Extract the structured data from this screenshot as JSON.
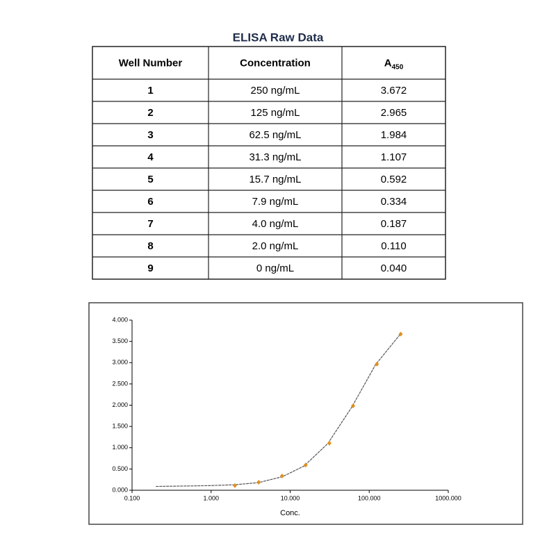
{
  "table": {
    "title": "ELISA Raw Data",
    "headers": [
      "Well Number",
      "Concentration",
      {
        "main": "A",
        "sub": "450"
      }
    ],
    "rows": [
      [
        "1",
        "250 ng/mL",
        "3.672"
      ],
      [
        "2",
        "125 ng/mL",
        "2.965"
      ],
      [
        "3",
        "62.5 ng/mL",
        "1.984"
      ],
      [
        "4",
        "31.3 ng/mL",
        "1.107"
      ],
      [
        "5",
        "15.7 ng/mL",
        "0.592"
      ],
      [
        "6",
        "7.9 ng/mL",
        "0.334"
      ],
      [
        "7",
        "4.0 ng/mL",
        "0.187"
      ],
      [
        "8",
        "2.0 ng/mL",
        "0.110"
      ],
      [
        "9",
        "0 ng/mL",
        "0.040"
      ]
    ]
  },
  "chart_data": {
    "type": "scatter",
    "x_label": "Conc.",
    "log_x": true,
    "xlim": [
      0.1,
      1000
    ],
    "ylim": [
      0,
      4
    ],
    "xticks": [
      {
        "value": 0.1,
        "label": "0.100"
      },
      {
        "value": 1,
        "label": "1.000"
      },
      {
        "value": 10,
        "label": "10.000"
      },
      {
        "value": 100,
        "label": "100.000"
      },
      {
        "value": 1000,
        "label": "1000.000"
      }
    ],
    "yticks": [
      {
        "value": 0,
        "label": "0.000"
      },
      {
        "value": 0.5,
        "label": "0.500"
      },
      {
        "value": 1,
        "label": "1.000"
      },
      {
        "value": 1.5,
        "label": "1.500"
      },
      {
        "value": 2,
        "label": "2.000"
      },
      {
        "value": 2.5,
        "label": "2.500"
      },
      {
        "value": 3,
        "label": "3.000"
      },
      {
        "value": 3.5,
        "label": "3.500"
      },
      {
        "value": 4,
        "label": "4.000"
      }
    ],
    "series": [
      {
        "style": "line",
        "color": "#555555",
        "x": [
          0.2,
          0.5,
          1,
          2,
          4,
          8,
          15,
          30,
          60,
          120,
          250
        ],
        "values": [
          0.09,
          0.1,
          0.11,
          0.13,
          0.18,
          0.32,
          0.57,
          1.1,
          1.95,
          2.95,
          3.68
        ]
      },
      {
        "style": "markers",
        "color": "#e0901e",
        "x": [
          250,
          125,
          62.5,
          31.3,
          15.7,
          7.9,
          4.0,
          2.0
        ],
        "values": [
          3.672,
          2.965,
          1.984,
          1.107,
          0.592,
          0.334,
          0.187,
          0.11
        ]
      }
    ]
  }
}
